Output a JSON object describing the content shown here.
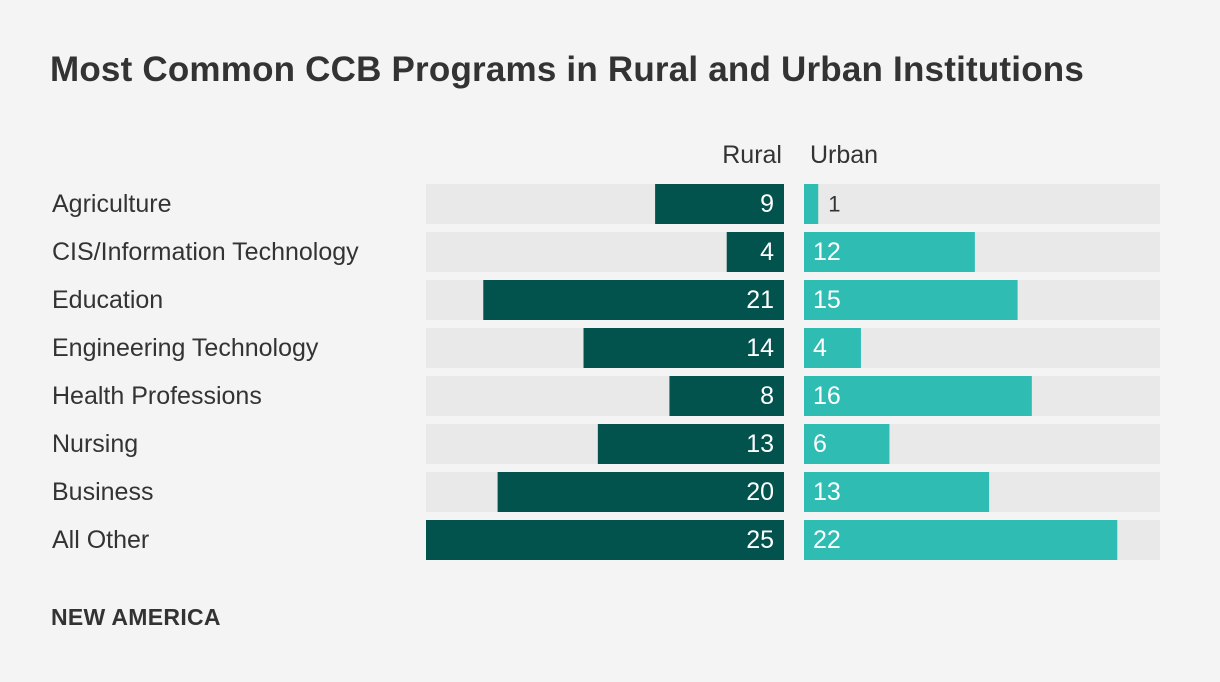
{
  "title": "Most Common CCB Programs in Rural and Urban Institutions",
  "footer": "NEW AMERICA",
  "colors": {
    "rural": "#02524e",
    "urban": "#2ebcb3",
    "track": "#e9e9e9",
    "background": "#f4f4f4",
    "text": "#333333"
  },
  "chart_data": {
    "type": "bar",
    "orientation": "horizontal-diverging",
    "title": "Most Common CCB Programs in Rural and Urban Institutions",
    "categories": [
      "Agriculture",
      "CIS/Information Technology",
      "Education",
      "Engineering Technology",
      "Health Professions",
      "Nursing",
      "Business",
      "All Other"
    ],
    "series": [
      {
        "name": "Rural",
        "values": [
          9,
          4,
          21,
          14,
          8,
          13,
          20,
          25
        ]
      },
      {
        "name": "Urban",
        "values": [
          1,
          12,
          15,
          4,
          16,
          6,
          13,
          22
        ]
      }
    ],
    "xlim": [
      0,
      25
    ],
    "grid": false,
    "legend": "column headers above bars"
  }
}
